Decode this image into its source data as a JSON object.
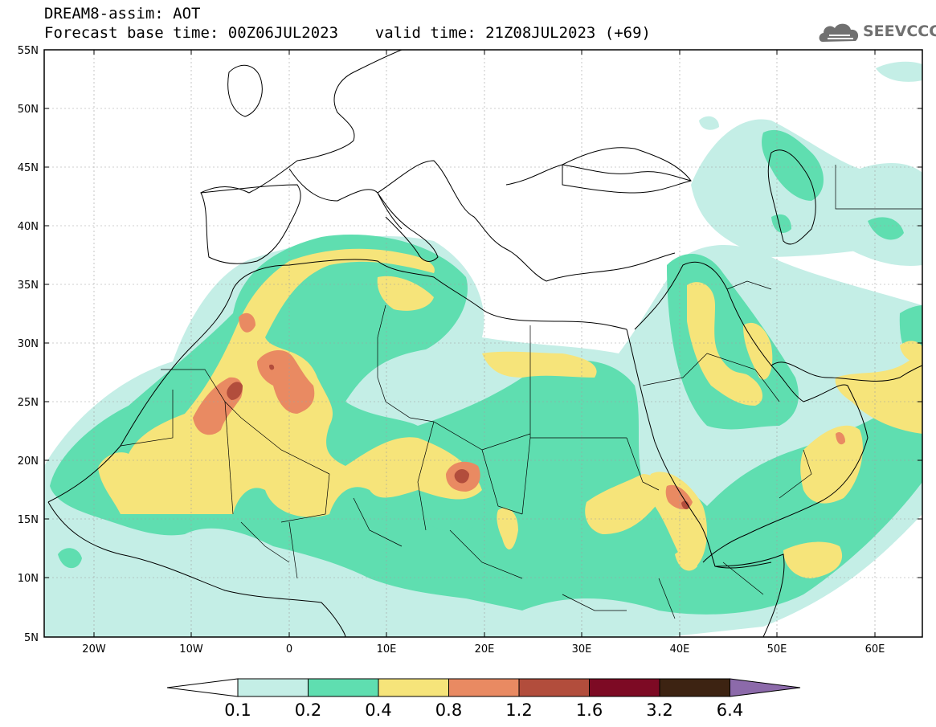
{
  "header": {
    "line1": "DREAM8-assim: AOT",
    "line2": "Forecast base time: 00Z06JUL2023    valid time: 21Z08JUL2023 (+69)"
  },
  "logo": {
    "text": "SEEVCCC",
    "icon": "cloud-icon"
  },
  "map": {
    "lon_range": [
      -25,
      65
    ],
    "lat_range": [
      5,
      55
    ],
    "lon_ticks": [
      {
        "value": -20,
        "label": "20W"
      },
      {
        "value": -10,
        "label": "10W"
      },
      {
        "value": 0,
        "label": "0"
      },
      {
        "value": 10,
        "label": "10E"
      },
      {
        "value": 20,
        "label": "20E"
      },
      {
        "value": 30,
        "label": "30E"
      },
      {
        "value": 40,
        "label": "40E"
      },
      {
        "value": 50,
        "label": "50E"
      },
      {
        "value": 60,
        "label": "60E"
      }
    ],
    "lat_ticks": [
      {
        "value": 55,
        "label": "55N"
      },
      {
        "value": 50,
        "label": "50N"
      },
      {
        "value": 45,
        "label": "45N"
      },
      {
        "value": 40,
        "label": "40N"
      },
      {
        "value": 35,
        "label": "35N"
      },
      {
        "value": 30,
        "label": "30N"
      },
      {
        "value": 25,
        "label": "25N"
      },
      {
        "value": 20,
        "label": "20N"
      },
      {
        "value": 15,
        "label": "15N"
      },
      {
        "value": 10,
        "label": "10N"
      },
      {
        "value": 5,
        "label": "5N"
      }
    ],
    "grid": true
  },
  "colorbar": {
    "levels": [
      "0.1",
      "0.2",
      "0.4",
      "0.8",
      "1.2",
      "1.6",
      "3.2",
      "6.4"
    ],
    "colors": [
      "#ffffff",
      "#c4eee6",
      "#5fdeb0",
      "#f6e47a",
      "#e98a62",
      "#b24d3c",
      "#7d0a24",
      "#3d2312",
      "#8c6aaa"
    ]
  },
  "colors": {
    "lt": "#c4eee6",
    "med": "#5fdeb0",
    "yel": "#f6e47a",
    "org": "#e98a62",
    "red": "#b24d3c"
  }
}
